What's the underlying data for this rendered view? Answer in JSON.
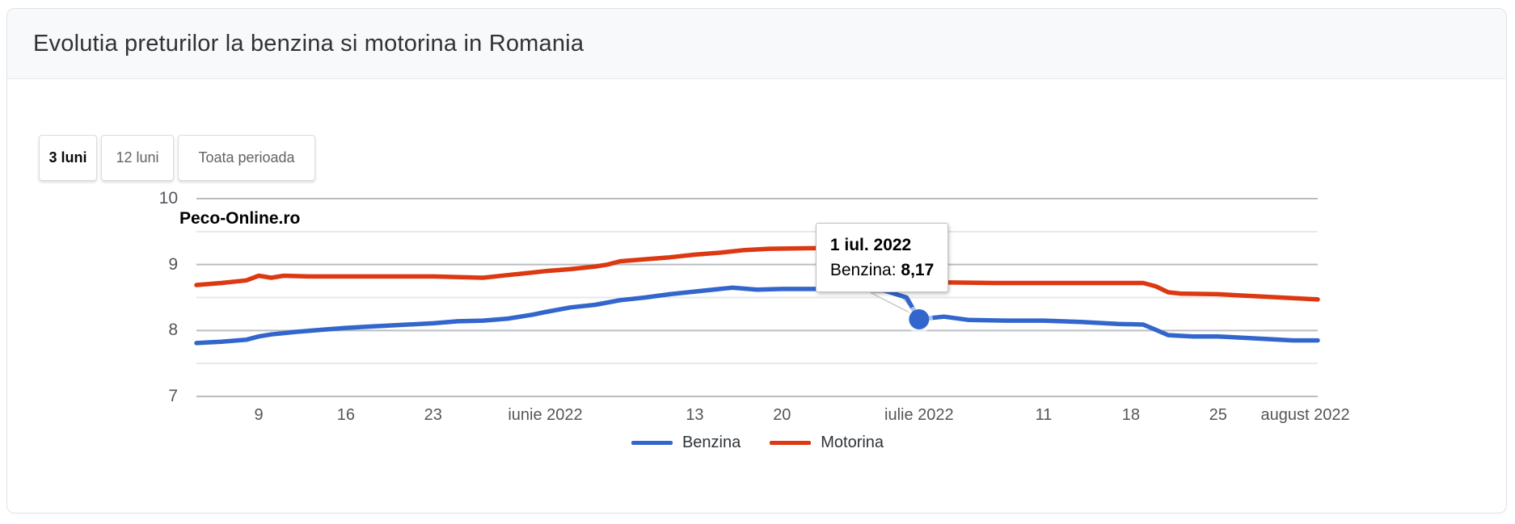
{
  "card": {
    "title": "Evolutia preturilor la benzina si motorina in Romania"
  },
  "tabs": [
    {
      "label": "3 luni",
      "active": true
    },
    {
      "label": "12 luni",
      "active": false
    },
    {
      "label": "Toata perioada",
      "active": false
    }
  ],
  "watermark": "Peco-Online.ro",
  "tooltip": {
    "date": "1 iul. 2022",
    "series_label": "Benzina:",
    "value": "8,17"
  },
  "chart_data": {
    "type": "line",
    "title": "Evolutia preturilor la benzina si motorina in Romania",
    "x_type": "date",
    "xlim": [
      "2022-05-04",
      "2022-08-02"
    ],
    "ylim": [
      7,
      10
    ],
    "yticks": [
      7,
      8,
      9,
      10
    ],
    "y_minor_gridlines": [
      7.5,
      8.5,
      9.5
    ],
    "grid": true,
    "legend_position": "bottom",
    "xticks": [
      {
        "label": "9",
        "date": "2022-05-09"
      },
      {
        "label": "16",
        "date": "2022-05-16"
      },
      {
        "label": "23",
        "date": "2022-05-23"
      },
      {
        "label": "iunie 2022",
        "date": "2022-06-01"
      },
      {
        "label": "13",
        "date": "2022-06-13"
      },
      {
        "label": "20",
        "date": "2022-06-20"
      },
      {
        "label": "iulie 2022",
        "date": "2022-07-01"
      },
      {
        "label": "11",
        "date": "2022-07-11"
      },
      {
        "label": "18",
        "date": "2022-07-18"
      },
      {
        "label": "25",
        "date": "2022-07-25"
      },
      {
        "label": "august 2022",
        "date": "2022-08-01"
      }
    ],
    "series": [
      {
        "name": "Benzina",
        "color": "#3366cc",
        "points": [
          [
            "2022-05-04",
            7.81
          ],
          [
            "2022-05-06",
            7.83
          ],
          [
            "2022-05-08",
            7.86
          ],
          [
            "2022-05-09",
            7.91
          ],
          [
            "2022-05-10",
            7.94
          ],
          [
            "2022-05-12",
            7.98
          ],
          [
            "2022-05-14",
            8.01
          ],
          [
            "2022-05-16",
            8.04
          ],
          [
            "2022-05-18",
            8.06
          ],
          [
            "2022-05-20",
            8.08
          ],
          [
            "2022-05-23",
            8.11
          ],
          [
            "2022-05-25",
            8.14
          ],
          [
            "2022-05-27",
            8.15
          ],
          [
            "2022-05-29",
            8.18
          ],
          [
            "2022-05-31",
            8.24
          ],
          [
            "2022-06-01",
            8.28
          ],
          [
            "2022-06-03",
            8.35
          ],
          [
            "2022-06-05",
            8.39
          ],
          [
            "2022-06-07",
            8.46
          ],
          [
            "2022-06-09",
            8.5
          ],
          [
            "2022-06-11",
            8.55
          ],
          [
            "2022-06-13",
            8.59
          ],
          [
            "2022-06-15",
            8.63
          ],
          [
            "2022-06-16",
            8.65
          ],
          [
            "2022-06-18",
            8.62
          ],
          [
            "2022-06-20",
            8.63
          ],
          [
            "2022-06-24",
            8.63
          ],
          [
            "2022-06-28",
            8.62
          ],
          [
            "2022-06-30",
            8.5
          ],
          [
            "2022-07-01",
            8.17
          ],
          [
            "2022-07-03",
            8.21
          ],
          [
            "2022-07-05",
            8.16
          ],
          [
            "2022-07-08",
            8.15
          ],
          [
            "2022-07-11",
            8.15
          ],
          [
            "2022-07-14",
            8.13
          ],
          [
            "2022-07-17",
            8.1
          ],
          [
            "2022-07-19",
            8.09
          ],
          [
            "2022-07-20",
            8.01
          ],
          [
            "2022-07-21",
            7.93
          ],
          [
            "2022-07-23",
            7.91
          ],
          [
            "2022-07-25",
            7.91
          ],
          [
            "2022-07-28",
            7.88
          ],
          [
            "2022-07-31",
            7.85
          ],
          [
            "2022-08-02",
            7.85
          ]
        ]
      },
      {
        "name": "Motorina",
        "color": "#dc3912",
        "points": [
          [
            "2022-05-04",
            8.69
          ],
          [
            "2022-05-06",
            8.72
          ],
          [
            "2022-05-08",
            8.76
          ],
          [
            "2022-05-09",
            8.83
          ],
          [
            "2022-05-10",
            8.8
          ],
          [
            "2022-05-11",
            8.83
          ],
          [
            "2022-05-13",
            8.82
          ],
          [
            "2022-05-18",
            8.82
          ],
          [
            "2022-05-23",
            8.82
          ],
          [
            "2022-05-27",
            8.8
          ],
          [
            "2022-05-29",
            8.84
          ],
          [
            "2022-05-31",
            8.88
          ],
          [
            "2022-06-01",
            8.9
          ],
          [
            "2022-06-03",
            8.93
          ],
          [
            "2022-06-05",
            8.97
          ],
          [
            "2022-06-06",
            9.0
          ],
          [
            "2022-06-07",
            9.05
          ],
          [
            "2022-06-09",
            9.08
          ],
          [
            "2022-06-11",
            9.11
          ],
          [
            "2022-06-13",
            9.15
          ],
          [
            "2022-06-15",
            9.18
          ],
          [
            "2022-06-17",
            9.22
          ],
          [
            "2022-06-19",
            9.24
          ],
          [
            "2022-06-23",
            9.25
          ],
          [
            "2022-06-27",
            9.24
          ],
          [
            "2022-06-30",
            9.22
          ],
          [
            "2022-07-01",
            8.75
          ],
          [
            "2022-07-03",
            8.73
          ],
          [
            "2022-07-07",
            8.72
          ],
          [
            "2022-07-15",
            8.72
          ],
          [
            "2022-07-19",
            8.72
          ],
          [
            "2022-07-20",
            8.67
          ],
          [
            "2022-07-21",
            8.58
          ],
          [
            "2022-07-22",
            8.56
          ],
          [
            "2022-07-25",
            8.55
          ],
          [
            "2022-07-28",
            8.52
          ],
          [
            "2022-07-31",
            8.49
          ],
          [
            "2022-08-02",
            8.47
          ]
        ]
      }
    ],
    "highlight": {
      "series": "Benzina",
      "date": "2022-07-01",
      "value": 8.17
    }
  }
}
